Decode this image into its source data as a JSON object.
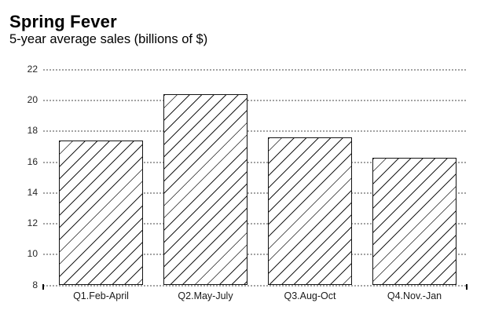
{
  "chart_data": {
    "type": "bar",
    "title": "Spring Fever",
    "subtitle": "5-year average sales (billions of $)",
    "categories": [
      "Q1.Feb-April",
      "Q2.May-July",
      "Q3.Aug-Oct",
      "Q4.Nov.-Jan"
    ],
    "values": [
      17.4,
      20.4,
      17.6,
      16.3
    ],
    "xlabel": "",
    "ylabel": "",
    "ylim": [
      8,
      22
    ],
    "yticks": [
      8,
      10,
      12,
      14,
      16,
      18,
      20,
      22
    ],
    "grid": "horizontal-dotted",
    "legend": "none",
    "bar_style": "white fill with black diagonal hatch, black border",
    "colors": {
      "background": "#ffffff",
      "text": "#000000",
      "tick_text": "#262626",
      "gridline": "#a3a3a3",
      "bar_fill": "#ffffff",
      "bar_border": "#141414",
      "hatch": "#1c1c1c"
    }
  }
}
